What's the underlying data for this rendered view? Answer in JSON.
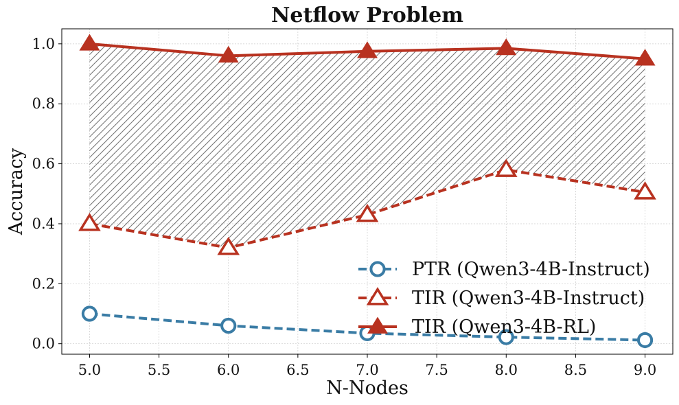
{
  "chart_data": {
    "type": "line",
    "title": "Netflow Problem",
    "xlabel": "N-Nodes",
    "ylabel": "Accuracy",
    "x": [
      5,
      6,
      7,
      8,
      9
    ],
    "xlim": [
      4.8,
      9.2
    ],
    "ylim": [
      -0.035,
      1.05
    ],
    "xticks": [
      5.0,
      5.5,
      6.0,
      6.5,
      7.0,
      7.5,
      8.0,
      8.5,
      9.0
    ],
    "xtick_labels": [
      "5.0",
      "5.5",
      "6.0",
      "6.5",
      "7.0",
      "7.5",
      "8.0",
      "8.5",
      "9.0"
    ],
    "yticks": [
      0.0,
      0.2,
      0.4,
      0.6,
      0.8,
      1.0
    ],
    "ytick_labels": [
      "0.0",
      "0.2",
      "0.4",
      "0.6",
      "0.8",
      "1.0"
    ],
    "grid": true,
    "legend_position": "lower-right",
    "fill_between": {
      "lower_series": 1,
      "upper_series": 2,
      "pattern": "hatch"
    },
    "series": [
      {
        "name": "PTR (Qwen3-4B-Instruct)",
        "values": [
          0.1,
          0.06,
          0.035,
          0.022,
          0.012
        ],
        "color": "#3a7ca5",
        "line": "dashed",
        "marker": "circle-open"
      },
      {
        "name": "TIR (Qwen3-4B-Instruct)",
        "values": [
          0.4,
          0.32,
          0.43,
          0.58,
          0.505
        ],
        "color": "#b83220",
        "line": "dashed",
        "marker": "triangle-open"
      },
      {
        "name": "TIR (Qwen3-4B-RL)",
        "values": [
          1.0,
          0.96,
          0.975,
          0.985,
          0.95
        ],
        "color": "#b83220",
        "line": "solid",
        "marker": "triangle-filled"
      }
    ]
  }
}
